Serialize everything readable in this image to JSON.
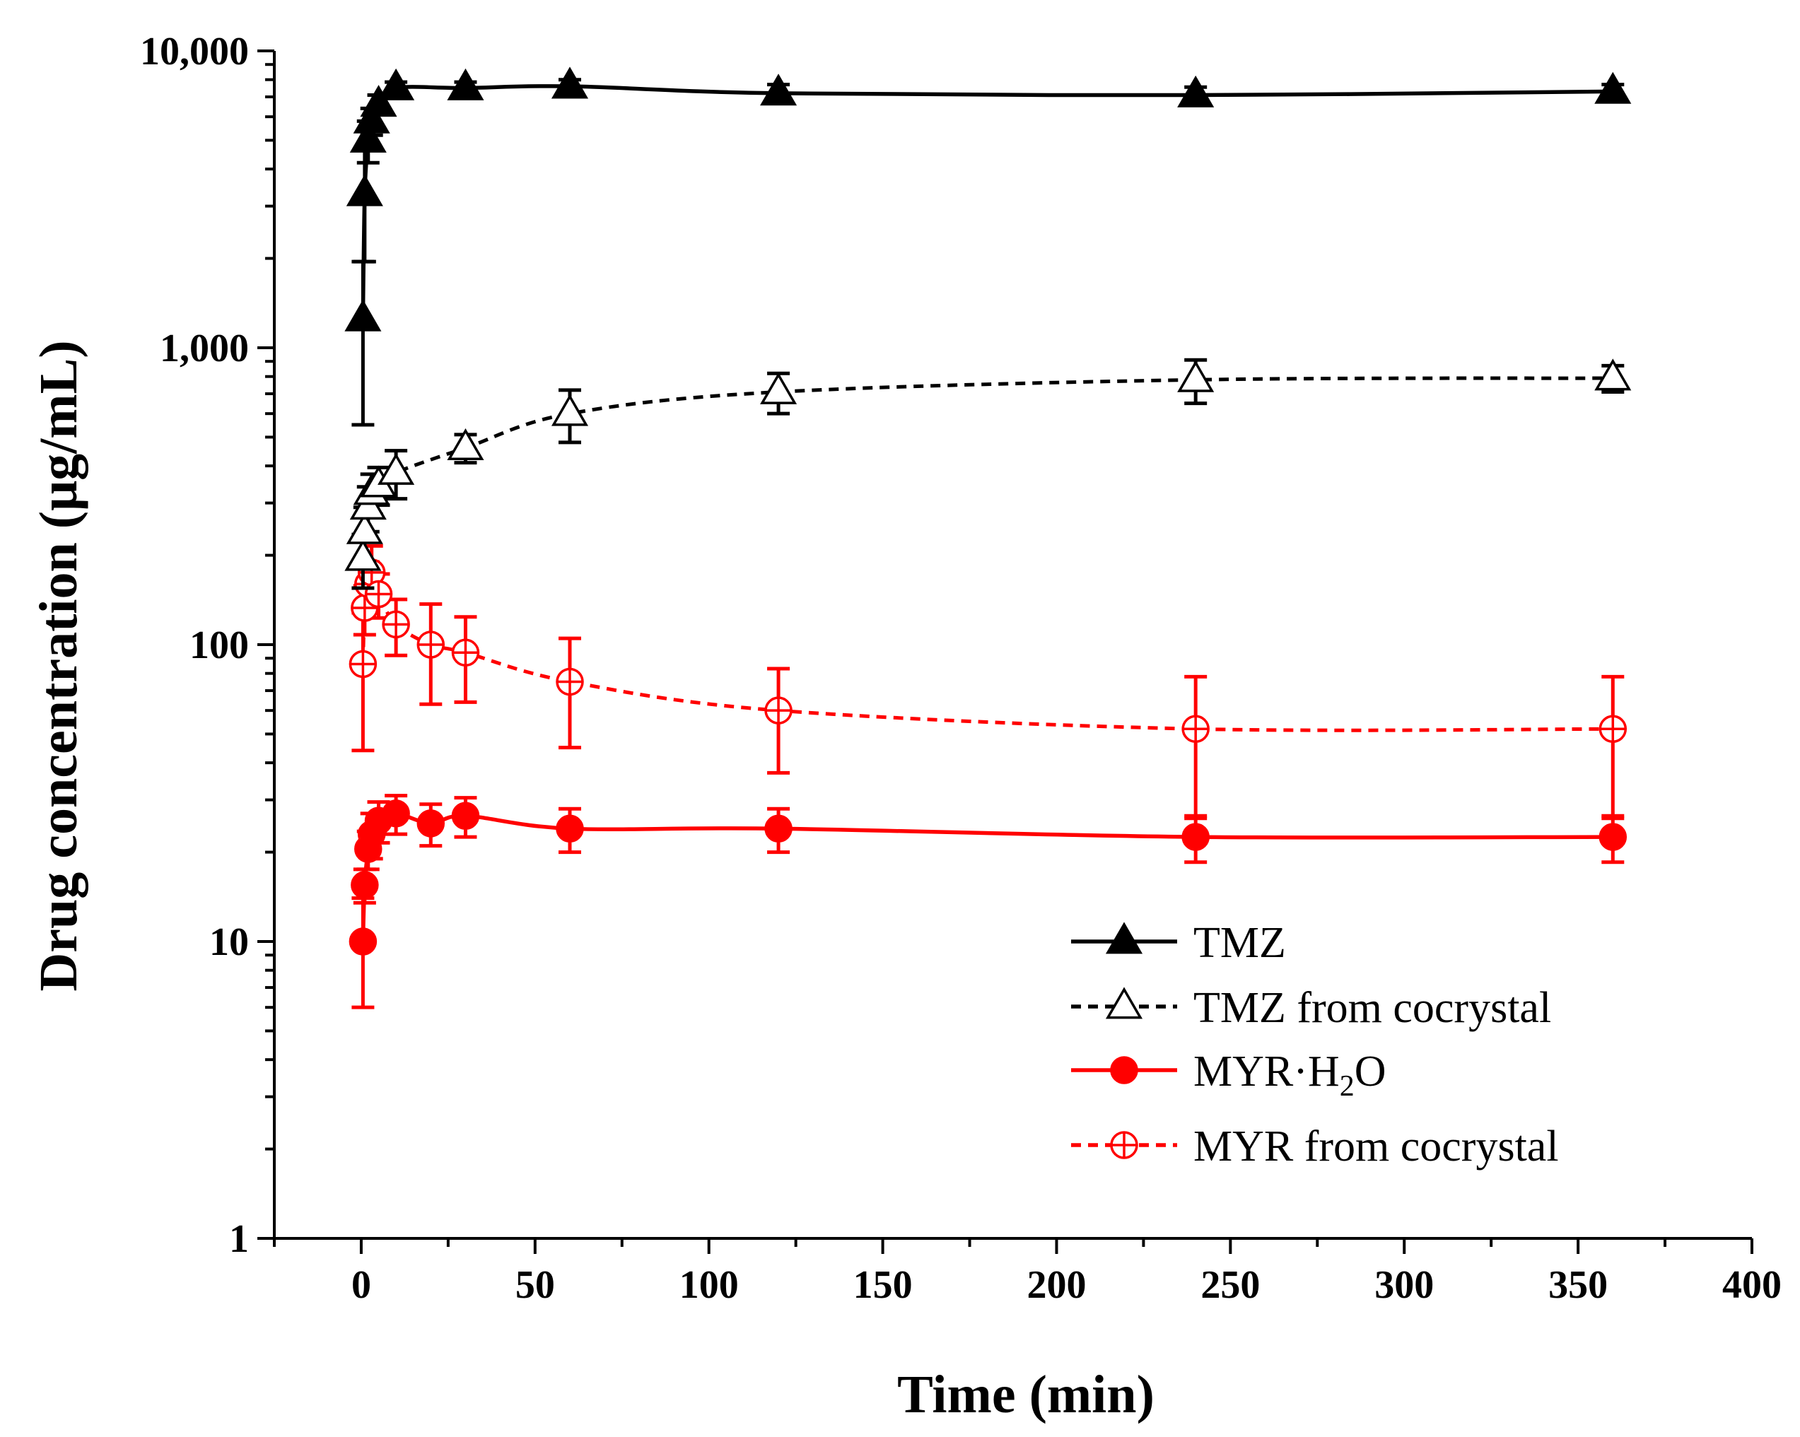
{
  "chart_data": {
    "type": "line",
    "xlabel": "Time (min)",
    "ylabel": "Drug concentration (μg/mL)",
    "xlim": [
      -25,
      400
    ],
    "ylim": [
      1,
      10000
    ],
    "yscale": "log",
    "x_ticks": [
      0,
      50,
      100,
      150,
      200,
      250,
      300,
      350,
      400
    ],
    "x_tick_labels": [
      "0",
      "50",
      "100",
      "150",
      "200",
      "250",
      "300",
      "350",
      "400"
    ],
    "y_ticks": [
      1,
      10,
      100,
      1000,
      10000
    ],
    "y_tick_labels": [
      "1",
      "10",
      "100",
      "1,000",
      "10,000"
    ],
    "legend_position": "bottom-right",
    "series": [
      {
        "name": "TMZ",
        "legend_label": "TMZ",
        "color": "#000000",
        "marker": "triangle-filled",
        "line": "solid",
        "x": [
          0.5,
          1,
          2,
          3,
          5,
          10,
          30,
          60,
          120,
          240,
          360
        ],
        "y": [
          1250,
          3300,
          5000,
          5800,
          6600,
          7500,
          7500,
          7600,
          7200,
          7100,
          7300
        ],
        "err": [
          700,
          1350,
          800,
          600,
          500,
          350,
          350,
          400,
          500,
          450,
          400
        ]
      },
      {
        "name": "TMZ from cocrystal",
        "legend_label": "TMZ from cocrystal",
        "color": "#000000",
        "marker": "triangle-open",
        "line": "dashed",
        "x": [
          0.5,
          1,
          2,
          3,
          5,
          10,
          30,
          60,
          120,
          240,
          360
        ],
        "y": [
          195,
          240,
          290,
          325,
          345,
          380,
          460,
          600,
          710,
          780,
          790
        ],
        "err": [
          40,
          50,
          50,
          50,
          50,
          70,
          50,
          120,
          110,
          130,
          80
        ]
      },
      {
        "name": "MYR·H2O",
        "legend_label": "MYR·H",
        "legend_sub": "2",
        "legend_suffix": "O",
        "color": "#ff0000",
        "marker": "circle-filled",
        "line": "solid",
        "x": [
          0.5,
          1,
          2,
          3,
          5,
          10,
          20,
          30,
          60,
          120,
          240,
          360
        ],
        "y": [
          10,
          15.5,
          20.5,
          23,
          25.5,
          27,
          25,
          26.5,
          24,
          24,
          22.5,
          22.5
        ],
        "err": [
          4,
          2,
          3,
          4,
          4,
          4,
          4,
          4,
          4,
          4,
          4,
          4
        ]
      },
      {
        "name": "MYR from cocrystal",
        "legend_label": "MYR from cocrystal",
        "color": "#ff0000",
        "marker": "circle-crossed",
        "line": "dashed",
        "x": [
          0.5,
          1,
          2,
          3,
          5,
          10,
          20,
          30,
          60,
          120,
          240,
          360
        ],
        "y": [
          86,
          133,
          160,
          175,
          148,
          117,
          100,
          94,
          75,
          60,
          52,
          52
        ],
        "err": [
          42,
          25,
          30,
          40,
          25,
          25,
          37,
          30,
          30,
          23,
          26,
          26
        ]
      }
    ]
  }
}
